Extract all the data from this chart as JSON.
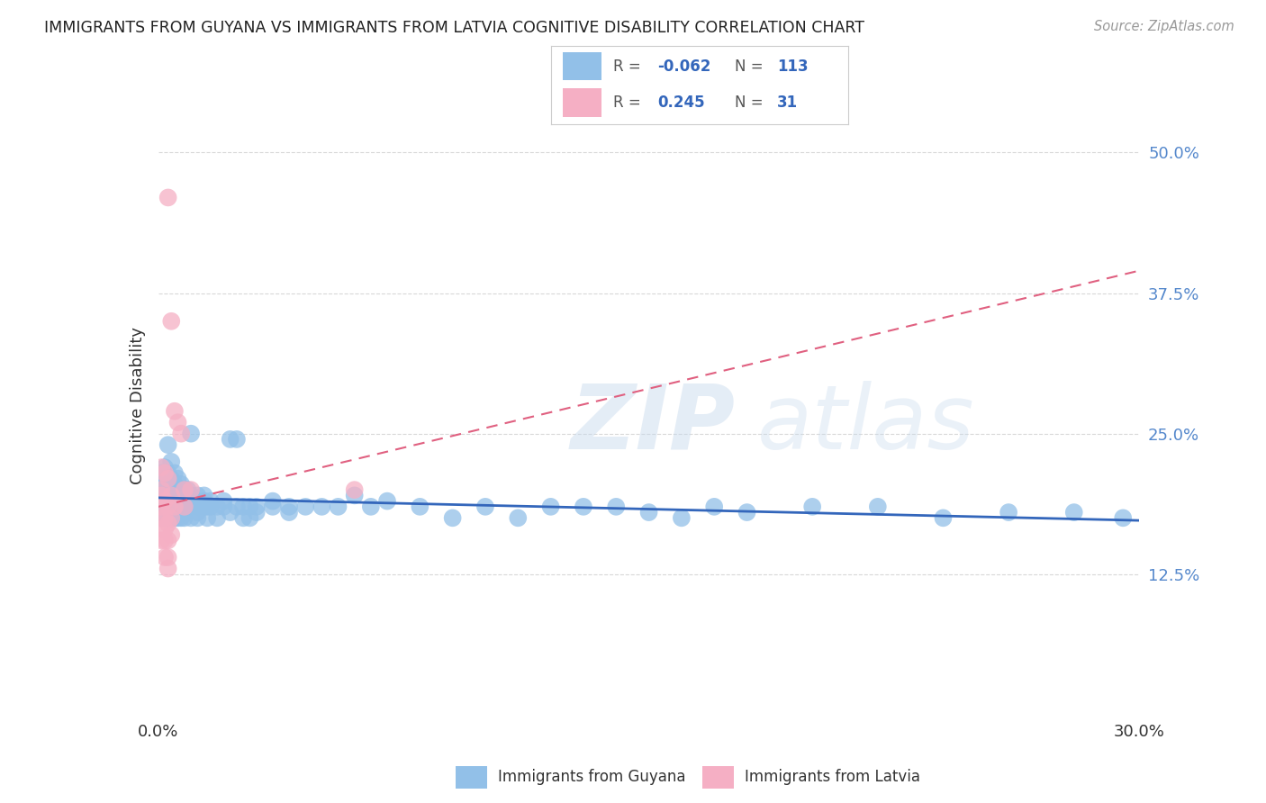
{
  "title": "IMMIGRANTS FROM GUYANA VS IMMIGRANTS FROM LATVIA COGNITIVE DISABILITY CORRELATION CHART",
  "source": "Source: ZipAtlas.com",
  "ylabel": "Cognitive Disability",
  "xlim": [
    0.0,
    0.3
  ],
  "ylim": [
    0.0,
    0.55
  ],
  "guyana_color": "#92c0e8",
  "latvia_color": "#f5afc4",
  "guyana_line_color": "#3366bb",
  "latvia_line_color": "#e06080",
  "background_color": "#ffffff",
  "grid_color": "#d8d8d8",
  "title_color": "#333333",
  "right_tick_color": "#5588cc",
  "watermark_zip_color": "#c5d8ec",
  "watermark_atlas_color": "#c5d8ec",
  "guyana_points": [
    [
      0.001,
      0.21
    ],
    [
      0.001,
      0.205
    ],
    [
      0.001,
      0.195
    ],
    [
      0.001,
      0.185
    ],
    [
      0.001,
      0.19
    ],
    [
      0.001,
      0.2
    ],
    [
      0.001,
      0.175
    ],
    [
      0.001,
      0.215
    ],
    [
      0.002,
      0.22
    ],
    [
      0.002,
      0.2
    ],
    [
      0.002,
      0.195
    ],
    [
      0.002,
      0.185
    ],
    [
      0.002,
      0.19
    ],
    [
      0.002,
      0.175
    ],
    [
      0.002,
      0.21
    ],
    [
      0.002,
      0.205
    ],
    [
      0.003,
      0.215
    ],
    [
      0.003,
      0.2
    ],
    [
      0.003,
      0.195
    ],
    [
      0.003,
      0.19
    ],
    [
      0.003,
      0.185
    ],
    [
      0.003,
      0.175
    ],
    [
      0.003,
      0.24
    ],
    [
      0.003,
      0.18
    ],
    [
      0.004,
      0.2
    ],
    [
      0.004,
      0.21
    ],
    [
      0.004,
      0.195
    ],
    [
      0.004,
      0.19
    ],
    [
      0.004,
      0.185
    ],
    [
      0.004,
      0.175
    ],
    [
      0.004,
      0.225
    ],
    [
      0.004,
      0.18
    ],
    [
      0.005,
      0.205
    ],
    [
      0.005,
      0.195
    ],
    [
      0.005,
      0.19
    ],
    [
      0.005,
      0.185
    ],
    [
      0.005,
      0.175
    ],
    [
      0.005,
      0.215
    ],
    [
      0.005,
      0.18
    ],
    [
      0.005,
      0.2
    ],
    [
      0.006,
      0.2
    ],
    [
      0.006,
      0.19
    ],
    [
      0.006,
      0.185
    ],
    [
      0.006,
      0.175
    ],
    [
      0.006,
      0.195
    ],
    [
      0.006,
      0.21
    ],
    [
      0.006,
      0.18
    ],
    [
      0.007,
      0.2
    ],
    [
      0.007,
      0.19
    ],
    [
      0.007,
      0.185
    ],
    [
      0.007,
      0.195
    ],
    [
      0.007,
      0.175
    ],
    [
      0.007,
      0.205
    ],
    [
      0.008,
      0.2
    ],
    [
      0.008,
      0.19
    ],
    [
      0.008,
      0.185
    ],
    [
      0.008,
      0.18
    ],
    [
      0.008,
      0.195
    ],
    [
      0.008,
      0.175
    ],
    [
      0.009,
      0.195
    ],
    [
      0.009,
      0.19
    ],
    [
      0.009,
      0.185
    ],
    [
      0.009,
      0.2
    ],
    [
      0.01,
      0.195
    ],
    [
      0.01,
      0.19
    ],
    [
      0.01,
      0.185
    ],
    [
      0.01,
      0.175
    ],
    [
      0.01,
      0.25
    ],
    [
      0.012,
      0.195
    ],
    [
      0.012,
      0.185
    ],
    [
      0.012,
      0.18
    ],
    [
      0.012,
      0.175
    ],
    [
      0.014,
      0.19
    ],
    [
      0.014,
      0.185
    ],
    [
      0.014,
      0.195
    ],
    [
      0.015,
      0.185
    ],
    [
      0.015,
      0.175
    ],
    [
      0.016,
      0.19
    ],
    [
      0.016,
      0.185
    ],
    [
      0.018,
      0.185
    ],
    [
      0.018,
      0.175
    ],
    [
      0.02,
      0.185
    ],
    [
      0.02,
      0.19
    ],
    [
      0.022,
      0.245
    ],
    [
      0.022,
      0.18
    ],
    [
      0.024,
      0.245
    ],
    [
      0.024,
      0.185
    ],
    [
      0.026,
      0.185
    ],
    [
      0.026,
      0.175
    ],
    [
      0.028,
      0.185
    ],
    [
      0.028,
      0.175
    ],
    [
      0.03,
      0.185
    ],
    [
      0.03,
      0.18
    ],
    [
      0.035,
      0.185
    ],
    [
      0.035,
      0.19
    ],
    [
      0.04,
      0.185
    ],
    [
      0.04,
      0.18
    ],
    [
      0.045,
      0.185
    ],
    [
      0.05,
      0.185
    ],
    [
      0.055,
      0.185
    ],
    [
      0.06,
      0.195
    ],
    [
      0.065,
      0.185
    ],
    [
      0.07,
      0.19
    ],
    [
      0.08,
      0.185
    ],
    [
      0.09,
      0.175
    ],
    [
      0.1,
      0.185
    ],
    [
      0.11,
      0.175
    ],
    [
      0.12,
      0.185
    ],
    [
      0.13,
      0.185
    ],
    [
      0.14,
      0.185
    ],
    [
      0.15,
      0.18
    ],
    [
      0.16,
      0.175
    ],
    [
      0.17,
      0.185
    ],
    [
      0.18,
      0.18
    ],
    [
      0.2,
      0.185
    ],
    [
      0.22,
      0.185
    ],
    [
      0.24,
      0.175
    ],
    [
      0.26,
      0.18
    ],
    [
      0.28,
      0.18
    ],
    [
      0.295,
      0.175
    ]
  ],
  "latvia_points": [
    [
      0.001,
      0.22
    ],
    [
      0.001,
      0.2
    ],
    [
      0.001,
      0.195
    ],
    [
      0.001,
      0.185
    ],
    [
      0.001,
      0.175
    ],
    [
      0.001,
      0.165
    ],
    [
      0.001,
      0.155
    ],
    [
      0.002,
      0.215
    ],
    [
      0.002,
      0.19
    ],
    [
      0.002,
      0.175
    ],
    [
      0.002,
      0.165
    ],
    [
      0.002,
      0.155
    ],
    [
      0.002,
      0.14
    ],
    [
      0.003,
      0.46
    ],
    [
      0.003,
      0.21
    ],
    [
      0.003,
      0.185
    ],
    [
      0.003,
      0.17
    ],
    [
      0.003,
      0.155
    ],
    [
      0.003,
      0.14
    ],
    [
      0.003,
      0.13
    ],
    [
      0.004,
      0.35
    ],
    [
      0.004,
      0.195
    ],
    [
      0.004,
      0.175
    ],
    [
      0.004,
      0.16
    ],
    [
      0.005,
      0.27
    ],
    [
      0.005,
      0.185
    ],
    [
      0.006,
      0.26
    ],
    [
      0.007,
      0.25
    ],
    [
      0.008,
      0.2
    ],
    [
      0.008,
      0.185
    ],
    [
      0.01,
      0.2
    ],
    [
      0.06,
      0.2
    ]
  ]
}
